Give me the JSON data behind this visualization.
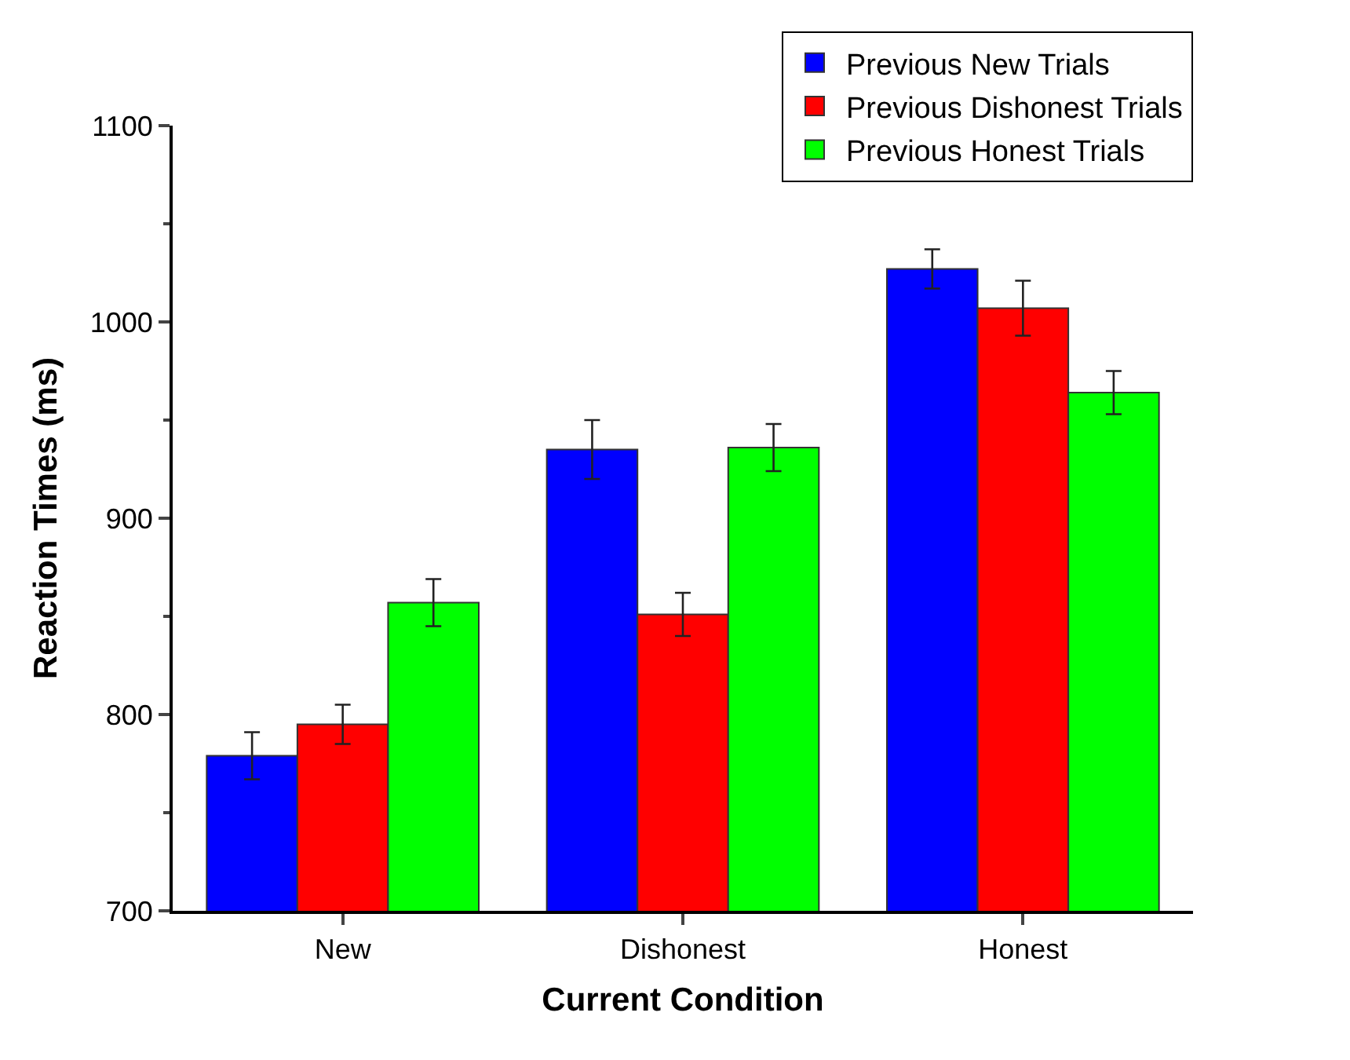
{
  "chart_data": {
    "type": "bar",
    "xlabel": "Current Condition",
    "ylabel": "Reaction Times (ms)",
    "categories": [
      "New",
      "Dishonest",
      "Honest"
    ],
    "series": [
      {
        "name": "Previous New Trials",
        "color": "#0000ff",
        "values": [
          779,
          935,
          1027
        ],
        "errors": [
          12,
          15,
          10
        ]
      },
      {
        "name": "Previous Dishonest Trials",
        "color": "#ff0000",
        "values": [
          795,
          851,
          1007
        ],
        "errors": [
          10,
          11,
          14
        ]
      },
      {
        "name": "Previous Honest Trials",
        "color": "#00ff00",
        "values": [
          857,
          936,
          964
        ],
        "errors": [
          12,
          12,
          11
        ]
      }
    ],
    "ylim": [
      700,
      1100
    ],
    "yticks": [
      700,
      800,
      900,
      1000,
      1100
    ],
    "legend": "top right"
  }
}
